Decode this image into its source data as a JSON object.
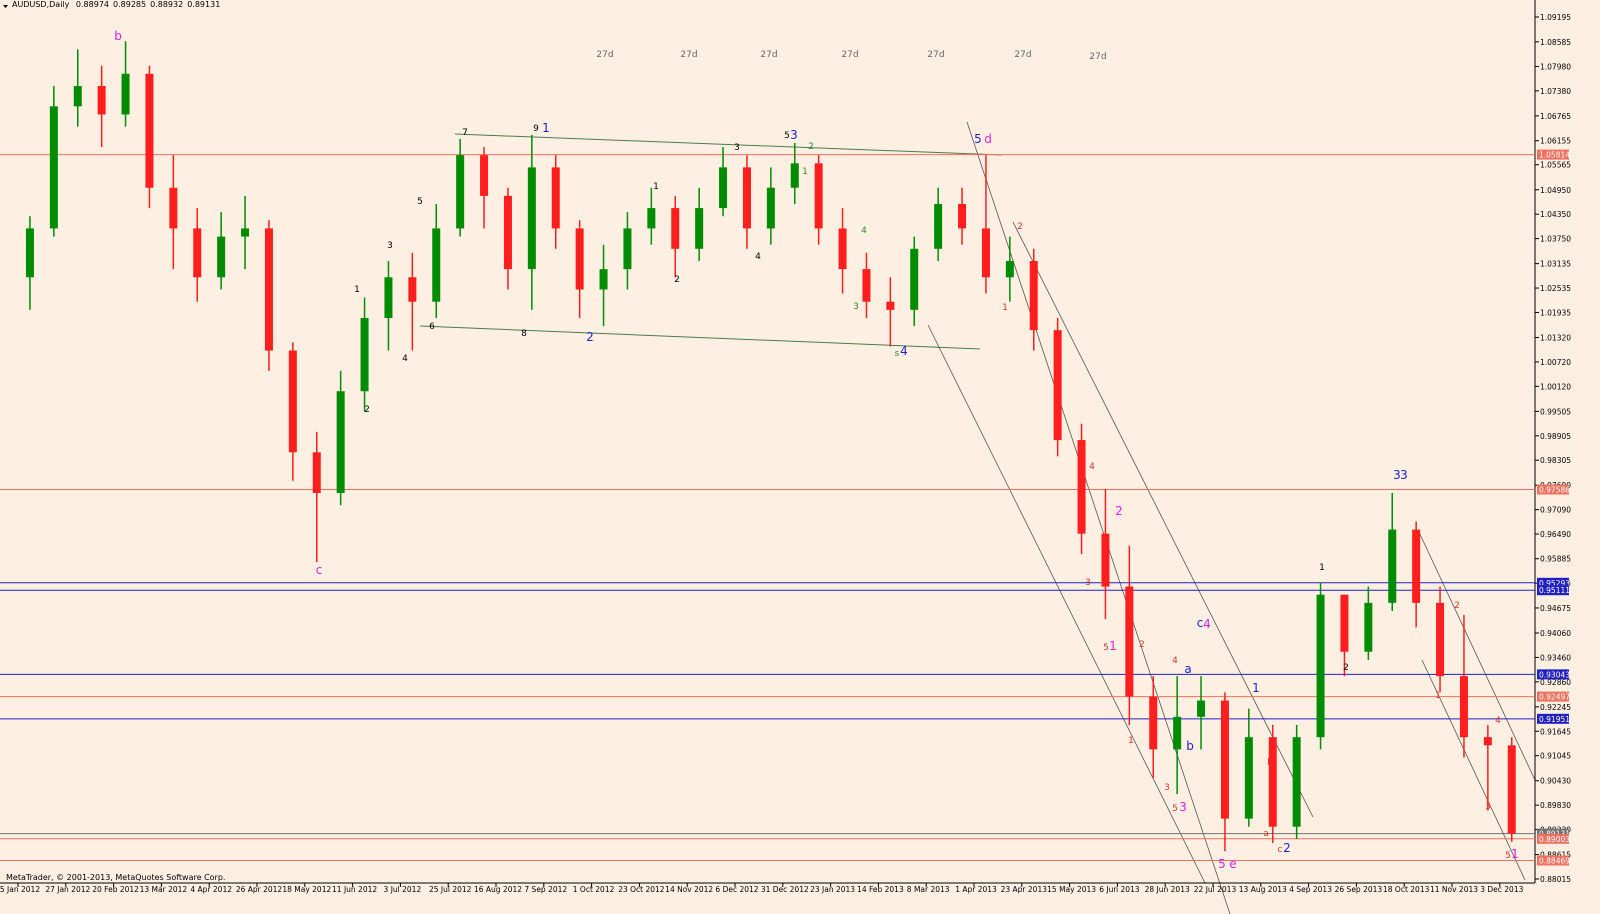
{
  "chart_data": {
    "type": "candlestick",
    "symbol": "AUDUSD,Daily",
    "header_values": [
      0.88974,
      0.89285,
      0.88932,
      0.89131
    ],
    "footer": "MetaTrader, © 2001-2013, MetaQuotes Software Corp.",
    "bull_color": "#008c00",
    "bear_color": "#ff1e1e",
    "ylim": [
      0.87917,
      1.09539
    ],
    "yticks": [
      1.09195,
      1.08585,
      {
        "value": 1.0798,
        "label": "1.07980"
      },
      {
        "value": 1.0738,
        "label": "1.07380"
      },
      1.06765,
      1.06155,
      1.05565,
      {
        "value": 1.0495,
        "label": "1.04950"
      },
      {
        "value": 1.0435,
        "label": "1.04350"
      },
      {
        "value": 1.0375,
        "label": "1.03750"
      },
      1.03135,
      1.02535,
      1.01935,
      {
        "value": 1.0132,
        "label": "1.01320"
      },
      {
        "value": 1.0072,
        "label": "1.00720"
      },
      {
        "value": 1.0012,
        "label": "1.00120"
      },
      0.99505,
      0.98905,
      0.98305,
      {
        "value": 0.9769,
        "label": "0.97690"
      },
      {
        "value": 0.9709,
        "label": "0.97090"
      },
      {
        "value": 0.9649,
        "label": "0.96490"
      },
      0.95885,
      0.95285,
      0.94675,
      {
        "value": 0.9406,
        "label": "0.94060"
      },
      {
        "value": 0.9346,
        "label": "0.93460"
      },
      {
        "value": 0.9286,
        "label": "0.92860"
      },
      0.92245,
      0.91645,
      0.91045,
      {
        "value": 0.9043,
        "label": "0.90430"
      },
      {
        "value": 0.8983,
        "label": "0.89830"
      },
      {
        "value": 0.8923,
        "label": "0.89230"
      },
      0.88615,
      0.88015
    ],
    "xlabels": [
      "5 Jan 2012",
      "27 Jan 2012",
      "20 Feb 2012",
      "13 Mar 2012",
      "4 Apr 2012",
      "26 Apr 2012",
      "18 May 2012",
      "11 Jun 2012",
      "3 Jul 2012",
      "25 Jul 2012",
      "16 Aug 2012",
      "7 Sep 2012",
      "1 Oct 2012",
      "23 Oct 2012",
      "14 Nov 2012",
      "6 Dec 2012",
      "31 Dec 2012",
      "23 Jan 2013",
      "14 Feb 2013",
      "8 Mar 2013",
      "1 Apr 2013",
      "23 Apr 2013",
      "15 May 2013",
      "6 Jun 2013",
      "28 Jun 2013",
      "22 Jul 2013",
      "13 Aug 2013",
      "4 Sep 2013",
      "26 Sep 2013",
      "18 Oct 2013",
      "11 Nov 2013",
      "3 Dec 2013"
    ],
    "candles": [
      [
        1.028,
        1.043,
        1.02,
        1.04
      ],
      [
        1.04,
        1.075,
        1.038,
        1.07
      ],
      [
        1.07,
        1.084,
        1.065,
        1.075
      ],
      [
        1.075,
        1.08,
        1.06,
        1.068
      ],
      [
        1.068,
        1.086,
        1.065,
        1.078
      ],
      [
        1.078,
        1.08,
        1.045,
        1.05
      ],
      [
        1.05,
        1.058,
        1.03,
        1.04
      ],
      [
        1.04,
        1.045,
        1.022,
        1.028
      ],
      [
        1.028,
        1.044,
        1.025,
        1.038
      ],
      [
        1.038,
        1.048,
        1.03,
        1.04
      ],
      [
        1.04,
        1.042,
        1.005,
        1.01
      ],
      [
        1.01,
        1.012,
        0.978,
        0.985
      ],
      [
        0.985,
        0.99,
        0.958,
        0.975
      ],
      [
        0.975,
        1.005,
        0.972,
        1.0
      ],
      [
        1.0,
        1.023,
        0.995,
        1.018
      ],
      [
        1.018,
        1.032,
        1.01,
        1.028
      ],
      [
        1.028,
        1.034,
        1.01,
        1.022
      ],
      [
        1.022,
        1.046,
        1.018,
        1.04
      ],
      [
        1.04,
        1.062,
        1.038,
        1.058
      ],
      [
        1.058,
        1.06,
        1.04,
        1.048
      ],
      [
        1.048,
        1.05,
        1.025,
        1.03
      ],
      [
        1.03,
        1.063,
        1.02,
        1.055
      ],
      [
        1.055,
        1.058,
        1.035,
        1.04
      ],
      [
        1.04,
        1.042,
        1.018,
        1.025
      ],
      [
        1.025,
        1.036,
        1.016,
        1.03
      ],
      [
        1.03,
        1.044,
        1.025,
        1.04
      ],
      [
        1.04,
        1.05,
        1.036,
        1.045
      ],
      [
        1.045,
        1.048,
        1.028,
        1.035
      ],
      [
        1.035,
        1.05,
        1.032,
        1.045
      ],
      [
        1.045,
        1.06,
        1.043,
        1.055
      ],
      [
        1.055,
        1.058,
        1.035,
        1.04
      ],
      [
        1.04,
        1.055,
        1.036,
        1.05
      ],
      [
        1.05,
        1.061,
        1.046,
        1.056
      ],
      [
        1.056,
        1.058,
        1.036,
        1.04
      ],
      [
        1.04,
        1.045,
        1.024,
        1.03
      ],
      [
        1.03,
        1.034,
        1.018,
        1.022
      ],
      [
        1.022,
        1.028,
        1.011,
        1.02
      ],
      [
        1.02,
        1.038,
        1.016,
        1.035
      ],
      [
        1.035,
        1.05,
        1.032,
        1.046
      ],
      [
        1.046,
        1.05,
        1.036,
        1.04
      ],
      [
        1.04,
        1.058,
        1.024,
        1.028
      ],
      [
        1.028,
        1.038,
        1.022,
        1.032
      ],
      [
        1.032,
        1.035,
        1.01,
        1.015
      ],
      [
        1.015,
        1.018,
        0.984,
        0.988
      ],
      [
        0.988,
        0.992,
        0.96,
        0.965
      ],
      [
        0.965,
        0.976,
        0.944,
        0.952
      ],
      [
        0.952,
        0.962,
        0.918,
        0.925
      ],
      [
        0.925,
        0.93,
        0.905,
        0.912
      ],
      [
        0.912,
        0.93,
        0.901,
        0.92
      ],
      [
        0.92,
        0.93,
        0.912,
        0.924
      ],
      [
        0.924,
        0.926,
        0.887,
        0.895
      ],
      [
        0.895,
        0.922,
        0.893,
        0.915
      ],
      [
        0.915,
        0.918,
        0.889,
        0.893
      ],
      [
        0.893,
        0.918,
        0.89,
        0.915
      ],
      [
        0.915,
        0.953,
        0.912,
        0.95
      ],
      [
        0.95,
        0.95,
        0.93,
        0.936
      ],
      [
        0.936,
        0.952,
        0.934,
        0.948
      ],
      [
        0.948,
        0.975,
        0.946,
        0.966
      ],
      [
        0.966,
        0.968,
        0.942,
        0.948
      ],
      [
        0.948,
        0.952,
        0.926,
        0.93
      ],
      [
        0.93,
        0.945,
        0.91,
        0.915
      ],
      [
        0.915,
        0.918,
        0.897,
        0.913
      ],
      [
        0.913,
        0.915,
        0.8893,
        0.8913
      ]
    ],
    "levels": [
      {
        "value": 1.05814,
        "color": "#f07060"
      },
      {
        "value": 0.97586,
        "color": "#f07060"
      },
      {
        "value": 0.95293,
        "color": "#2020c0"
      },
      {
        "value": 0.95111,
        "color": "#2020c0"
      },
      {
        "value": 0.93043,
        "color": "#2020c0"
      },
      {
        "value": 0.92497,
        "color": "#f07060"
      },
      {
        "value": 0.91951,
        "color": "#2020c0"
      },
      {
        "value": 0.89131,
        "color": "#707070"
      },
      {
        "value": 0.89003,
        "color": "#f07060"
      },
      {
        "value": 0.88469,
        "color": "#f07060"
      }
    ],
    "annotations": [
      {
        "text": "b",
        "color": "#e01ee0"
      },
      {
        "text": "c",
        "color": "#e01ee0"
      },
      {
        "text": "27d",
        "color": "#666666"
      },
      {
        "text": "27d",
        "color": "#666666"
      },
      {
        "text": "27d",
        "color": "#666666"
      },
      {
        "text": "27d",
        "color": "#666666"
      },
      {
        "text": "27d",
        "color": "#666666"
      },
      {
        "text": "27d",
        "color": "#666666"
      },
      {
        "text": "27d",
        "color": "#666666"
      },
      {
        "text": "7",
        "color": "#000000"
      },
      {
        "text": "9",
        "color": "#000000"
      },
      {
        "text": "1",
        "color": "#2020d0"
      },
      {
        "text": "5",
        "color": "#000000"
      },
      {
        "text": "3",
        "color": "#2020d0"
      },
      {
        "text": "5",
        "color": "#2020d0"
      },
      {
        "text": "d",
        "color": "#e01ee0"
      },
      {
        "text": "6",
        "color": "#000000"
      },
      {
        "text": "8",
        "color": "#000000"
      },
      {
        "text": "2",
        "color": "#2020d0"
      },
      {
        "text": "s",
        "color": "#2e8b2e"
      },
      {
        "text": "4",
        "color": "#2020d0"
      },
      {
        "text": "1",
        "color": "#000000"
      },
      {
        "text": "3",
        "color": "#000000"
      },
      {
        "text": "5",
        "color": "#000000"
      },
      {
        "text": "4",
        "color": "#000000"
      },
      {
        "text": "2",
        "color": "#000000"
      },
      {
        "text": "1",
        "color": "#000000"
      },
      {
        "text": "2",
        "color": "#000000"
      },
      {
        "text": "3",
        "color": "#000000"
      },
      {
        "text": "4",
        "color": "#000000"
      },
      {
        "text": "2",
        "color": "#2e8b2e"
      },
      {
        "text": "1",
        "color": "#2e8b2e"
      },
      {
        "text": "4",
        "color": "#2e8b2e"
      },
      {
        "text": "3",
        "color": "#2e8b2e"
      },
      {
        "text": "2",
        "color": "#e03030"
      },
      {
        "text": "1",
        "color": "#e03030"
      },
      {
        "text": "4",
        "color": "#e03030"
      },
      {
        "text": "2",
        "color": "#e01ee0"
      },
      {
        "text": "3",
        "color": "#e03030"
      },
      {
        "text": "5",
        "color": "#e03030"
      },
      {
        "text": "1",
        "color": "#e01ee0"
      },
      {
        "text": "2",
        "color": "#e03030"
      },
      {
        "text": "1",
        "color": "#e03030"
      },
      {
        "text": "4",
        "color": "#e03030"
      },
      {
        "text": "a",
        "color": "#2020d0"
      },
      {
        "text": "c",
        "color": "#2020d0"
      },
      {
        "text": "4",
        "color": "#e01ee0"
      },
      {
        "text": "b",
        "color": "#2020d0"
      },
      {
        "text": "3",
        "color": "#e03030"
      },
      {
        "text": "5",
        "color": "#e03030"
      },
      {
        "text": "3",
        "color": "#e01ee0"
      },
      {
        "text": "1",
        "color": "#2020d0"
      },
      {
        "text": "b",
        "color": "#e03030"
      },
      {
        "text": "a",
        "color": "#e03030"
      },
      {
        "text": "c",
        "color": "#e03030"
      },
      {
        "text": "2",
        "color": "#2020d0"
      },
      {
        "text": "5",
        "color": "#e01ee0"
      },
      {
        "text": "e",
        "color": "#e01ee0"
      },
      {
        "text": "1",
        "color": "#000000"
      },
      {
        "text": "2",
        "color": "#000000"
      },
      {
        "text": "3",
        "color": "#2020d0"
      },
      {
        "text": "3",
        "color": "#2020d0"
      },
      {
        "text": "2",
        "color": "#e03030"
      },
      {
        "text": "1",
        "color": "#e03030"
      },
      {
        "text": "4",
        "color": "#e03030"
      },
      {
        "text": "3",
        "color": "#e03030"
      },
      {
        "text": "5",
        "color": "#e03030"
      },
      {
        "text": "1",
        "color": "#e01ee0"
      }
    ]
  }
}
